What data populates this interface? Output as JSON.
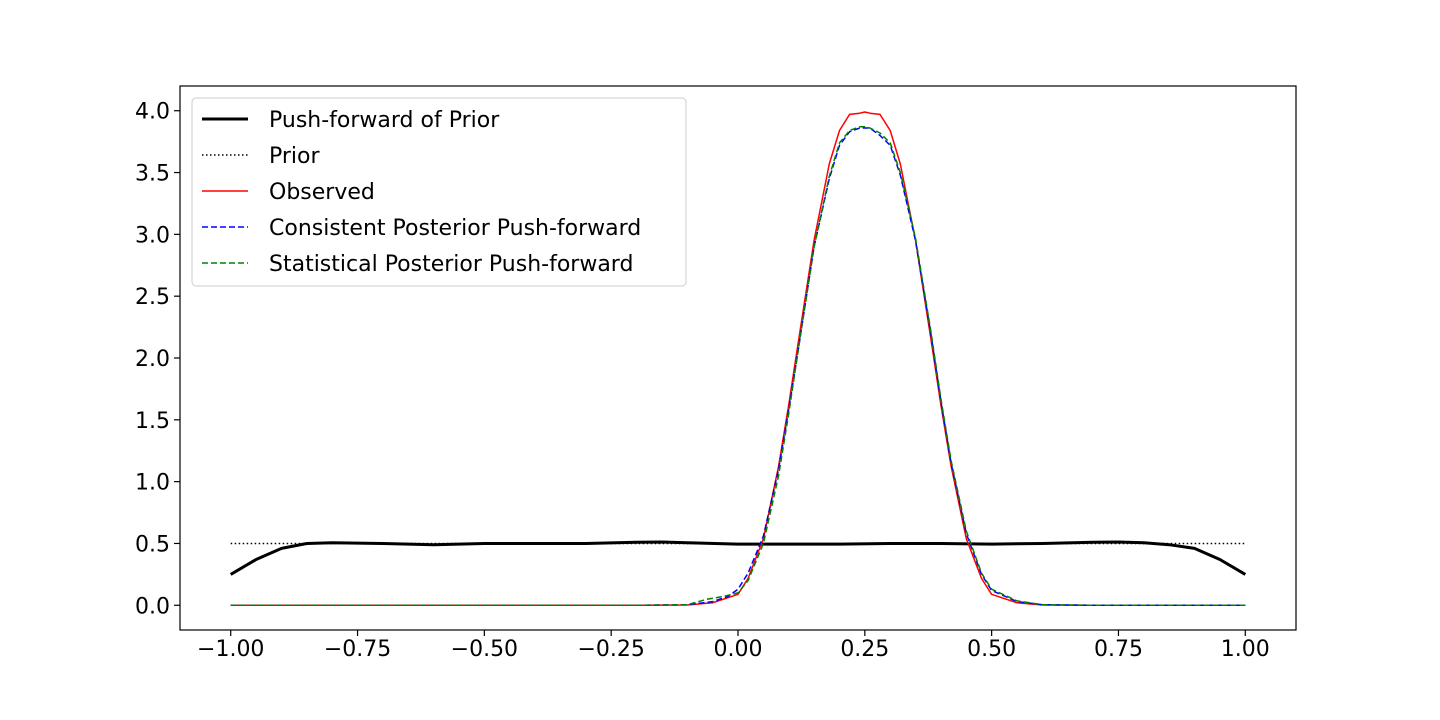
{
  "chart_data": {
    "type": "line",
    "title": "",
    "xlabel": "",
    "ylabel": "",
    "xlim": [
      -1.1,
      1.1
    ],
    "ylim": [
      -0.2,
      4.2
    ],
    "xticks": [
      -1.0,
      -0.75,
      -0.5,
      -0.25,
      0.0,
      0.25,
      0.5,
      0.75,
      1.0
    ],
    "xtick_labels": [
      "−1.00",
      "−0.75",
      "−0.50",
      "−0.25",
      "0.00",
      "0.25",
      "0.50",
      "0.75",
      "1.00"
    ],
    "yticks": [
      0.0,
      0.5,
      1.0,
      1.5,
      2.0,
      2.5,
      3.0,
      3.5,
      4.0
    ],
    "ytick_labels": [
      "0.0",
      "0.5",
      "1.0",
      "1.5",
      "2.0",
      "2.5",
      "3.0",
      "3.5",
      "4.0"
    ],
    "grid": false,
    "legend_position": "top-left",
    "series": [
      {
        "name": "Push-forward of Prior",
        "color": "#000000",
        "style": "solid-thick",
        "x": [
          -1.0,
          -0.95,
          -0.9,
          -0.85,
          -0.8,
          -0.7,
          -0.6,
          -0.5,
          -0.4,
          -0.3,
          -0.2,
          -0.15,
          -0.1,
          0.0,
          0.1,
          0.2,
          0.3,
          0.4,
          0.5,
          0.6,
          0.7,
          0.75,
          0.8,
          0.85,
          0.9,
          0.95,
          1.0
        ],
        "y": [
          0.25,
          0.37,
          0.46,
          0.5,
          0.505,
          0.5,
          0.49,
          0.5,
          0.5,
          0.5,
          0.51,
          0.512,
          0.505,
          0.495,
          0.495,
          0.495,
          0.5,
          0.5,
          0.495,
          0.5,
          0.51,
          0.512,
          0.505,
          0.49,
          0.46,
          0.37,
          0.25
        ]
      },
      {
        "name": "Prior",
        "color": "#000000",
        "style": "dotted",
        "x": [
          -1.0,
          1.0
        ],
        "y": [
          0.5,
          0.5
        ]
      },
      {
        "name": "Observed",
        "color": "#ff0000",
        "style": "solid",
        "x": [
          -1.0,
          -0.2,
          -0.1,
          -0.05,
          0.0,
          0.02,
          0.05,
          0.08,
          0.1,
          0.12,
          0.15,
          0.18,
          0.2,
          0.22,
          0.24,
          0.25,
          0.26,
          0.28,
          0.3,
          0.32,
          0.35,
          0.38,
          0.4,
          0.42,
          0.45,
          0.48,
          0.5,
          0.55,
          0.6,
          0.7,
          1.0
        ],
        "y": [
          0.0,
          0.0,
          0.002,
          0.02,
          0.089,
          0.217,
          0.539,
          1.126,
          1.62,
          2.16,
          2.952,
          3.57,
          3.84,
          3.97,
          3.98,
          3.99,
          3.98,
          3.97,
          3.84,
          3.57,
          2.952,
          2.16,
          1.62,
          1.126,
          0.539,
          0.217,
          0.089,
          0.02,
          0.002,
          0.0,
          0.0
        ]
      },
      {
        "name": "Consistent Posterior Push-forward",
        "color": "#0000ff",
        "style": "dashed",
        "x": [
          -1.0,
          -0.2,
          -0.1,
          -0.05,
          -0.02,
          0.0,
          0.02,
          0.05,
          0.08,
          0.1,
          0.12,
          0.15,
          0.18,
          0.2,
          0.22,
          0.24,
          0.25,
          0.26,
          0.28,
          0.3,
          0.32,
          0.35,
          0.38,
          0.4,
          0.42,
          0.45,
          0.48,
          0.5,
          0.55,
          0.6,
          0.7,
          1.0
        ],
        "y": [
          0.0,
          0.0,
          0.005,
          0.03,
          0.07,
          0.13,
          0.26,
          0.56,
          1.1,
          1.58,
          2.1,
          2.9,
          3.45,
          3.72,
          3.83,
          3.86,
          3.86,
          3.86,
          3.8,
          3.72,
          3.48,
          2.95,
          2.2,
          1.65,
          1.15,
          0.58,
          0.25,
          0.12,
          0.03,
          0.005,
          0.0,
          0.0
        ]
      },
      {
        "name": "Statistical Posterior Push-forward",
        "color": "#008000",
        "style": "dashed",
        "x": [
          -1.0,
          -0.2,
          -0.1,
          -0.06,
          -0.03,
          0.0,
          0.02,
          0.05,
          0.08,
          0.1,
          0.12,
          0.15,
          0.18,
          0.2,
          0.22,
          0.24,
          0.25,
          0.26,
          0.28,
          0.3,
          0.32,
          0.35,
          0.38,
          0.4,
          0.42,
          0.45,
          0.48,
          0.5,
          0.55,
          0.6,
          0.7,
          1.0
        ],
        "y": [
          0.0,
          0.0,
          0.005,
          0.05,
          0.07,
          0.1,
          0.2,
          0.5,
          1.05,
          1.55,
          2.1,
          2.9,
          3.47,
          3.74,
          3.84,
          3.87,
          3.87,
          3.86,
          3.82,
          3.74,
          3.5,
          2.97,
          2.22,
          1.67,
          1.17,
          0.6,
          0.26,
          0.13,
          0.035,
          0.005,
          0.0,
          0.0
        ]
      }
    ]
  }
}
